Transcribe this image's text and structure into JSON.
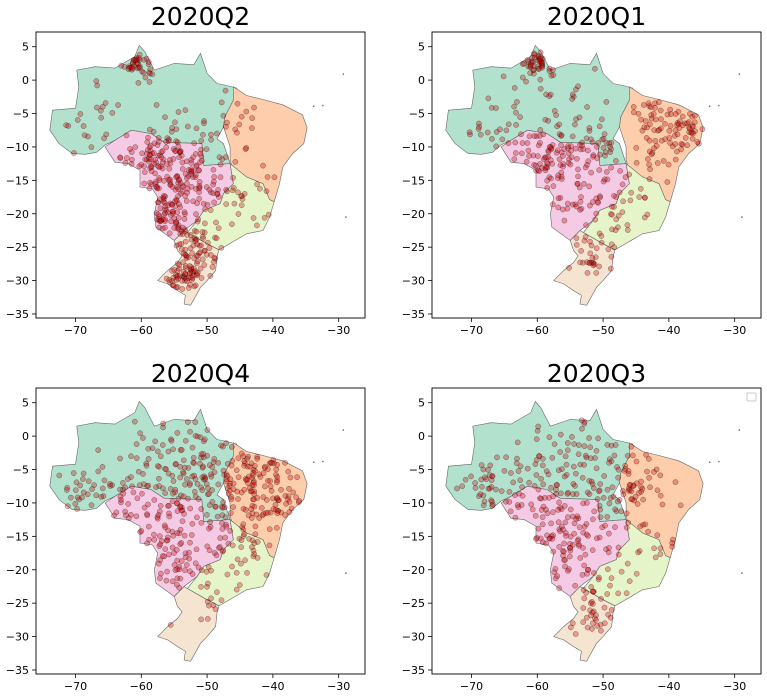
{
  "chart_data": [
    {
      "type": "scatter",
      "title": "2020Q2",
      "xlim": [
        -76,
        -26
      ],
      "ylim": [
        -35.6,
        7.2
      ],
      "xticks": [
        -70,
        -60,
        -50,
        -40,
        -30
      ],
      "yticks": [
        5,
        0,
        -5,
        -10,
        -15,
        -20,
        -25,
        -30,
        -35
      ],
      "xtick_labels": [
        "−70",
        "−60",
        "−50",
        "−40",
        "−30"
      ],
      "ytick_labels": [
        "5",
        "0",
        "−5",
        "−10",
        "−15",
        "−20",
        "−25",
        "−30",
        "−35"
      ],
      "legend": "none",
      "clusters": [
        {
          "lon": -60.5,
          "lat": 2.5,
          "spread": 1.2,
          "n": 40
        },
        {
          "lon": -58.0,
          "lat": -12.0,
          "spread": 3.5,
          "n": 90
        },
        {
          "lon": -54.5,
          "lat": -16.5,
          "spread": 3.0,
          "n": 70
        },
        {
          "lon": -56.5,
          "lat": -20.0,
          "spread": 1.5,
          "n": 35
        },
        {
          "lon": -50.0,
          "lat": -13.0,
          "spread": 4.0,
          "n": 60
        },
        {
          "lon": -52.5,
          "lat": -25.5,
          "spread": 2.5,
          "n": 70
        },
        {
          "lon": -53.5,
          "lat": -29.5,
          "spread": 1.6,
          "n": 55
        },
        {
          "lon": -47.0,
          "lat": -6.0,
          "spread": 3.5,
          "n": 25
        },
        {
          "lon": -45.0,
          "lat": -18.0,
          "spread": 3.0,
          "n": 20
        },
        {
          "lon": -68.0,
          "lat": -6.0,
          "spread": 4.0,
          "n": 20
        }
      ]
    },
    {
      "type": "scatter",
      "title": "2020Q1",
      "xlim": [
        -76,
        -26
      ],
      "ylim": [
        -35.6,
        7.2
      ],
      "xticks": [
        -70,
        -60,
        -50,
        -40,
        -30
      ],
      "yticks": [
        5,
        0,
        -5,
        -10,
        -15,
        -20,
        -25,
        -30,
        -35
      ],
      "xtick_labels": [
        "−70",
        "−60",
        "−50",
        "−40",
        "−30"
      ],
      "ytick_labels": [
        "5",
        "0",
        "−5",
        "−10",
        "−15",
        "−20",
        "−25",
        "−30",
        "−35"
      ],
      "legend": "none",
      "clusters": [
        {
          "lon": -60.0,
          "lat": 3.0,
          "spread": 1.3,
          "n": 45
        },
        {
          "lon": -58.0,
          "lat": -12.5,
          "spread": 3.5,
          "n": 80
        },
        {
          "lon": -53.0,
          "lat": -10.0,
          "spread": 4.0,
          "n": 50
        },
        {
          "lon": -37.5,
          "lat": -8.0,
          "spread": 2.5,
          "n": 55
        },
        {
          "lon": -42.0,
          "lat": -5.0,
          "spread": 2.5,
          "n": 30
        },
        {
          "lon": -50.0,
          "lat": -20.0,
          "spread": 3.5,
          "n": 45
        },
        {
          "lon": -51.0,
          "lat": -27.0,
          "spread": 2.8,
          "n": 25
        },
        {
          "lon": -60.0,
          "lat": -5.0,
          "spread": 5.0,
          "n": 35
        },
        {
          "lon": -68.0,
          "lat": -6.0,
          "spread": 3.5,
          "n": 15
        },
        {
          "lon": -46.0,
          "lat": -14.0,
          "spread": 3.5,
          "n": 25
        }
      ]
    },
    {
      "type": "scatter",
      "title": "2020Q4",
      "xlim": [
        -76,
        -26
      ],
      "ylim": [
        -35.6,
        7.2
      ],
      "xticks": [
        -70,
        -60,
        -50,
        -40,
        -30
      ],
      "yticks": [
        5,
        0,
        -5,
        -10,
        -15,
        -20,
        -25,
        -30,
        -35
      ],
      "xtick_labels": [
        "−70",
        "−60",
        "−50",
        "−40",
        "−30"
      ],
      "ytick_labels": [
        "5",
        "0",
        "−5",
        "−10",
        "−15",
        "−20",
        "−25",
        "−30",
        "−35"
      ],
      "legend": "none",
      "clusters": [
        {
          "lon": -50.0,
          "lat": -6.0,
          "spread": 5.5,
          "n": 160
        },
        {
          "lon": -42.0,
          "lat": -7.0,
          "spread": 3.5,
          "n": 70
        },
        {
          "lon": -57.0,
          "lat": -13.0,
          "spread": 4.0,
          "n": 70
        },
        {
          "lon": -67.5,
          "lat": -9.5,
          "spread": 3.0,
          "n": 40
        },
        {
          "lon": -45.0,
          "lat": -16.0,
          "spread": 3.5,
          "n": 45
        },
        {
          "lon": -55.0,
          "lat": -19.0,
          "spread": 2.5,
          "n": 30
        },
        {
          "lon": -49.0,
          "lat": -24.0,
          "spread": 3.0,
          "n": 20
        },
        {
          "lon": -37.5,
          "lat": -11.0,
          "spread": 2.0,
          "n": 20
        },
        {
          "lon": -60.0,
          "lat": -3.0,
          "spread": 3.0,
          "n": 25
        }
      ]
    },
    {
      "type": "scatter",
      "title": "2020Q3",
      "xlim": [
        -76,
        -26
      ],
      "ylim": [
        -35.6,
        7.2
      ],
      "xticks": [
        -70,
        -60,
        -50,
        -40,
        -30
      ],
      "yticks": [
        5,
        0,
        -5,
        -10,
        -15,
        -20,
        -25,
        -30,
        -35
      ],
      "xtick_labels": [
        "−70",
        "−60",
        "−50",
        "−40",
        "−30"
      ],
      "ytick_labels": [
        "5",
        "0",
        "−5",
        "−10",
        "−15",
        "−20",
        "−25",
        "−30",
        "−35"
      ],
      "legend": "upper right (empty)",
      "clusters": [
        {
          "lon": -55.0,
          "lat": -6.0,
          "spread": 5.0,
          "n": 120
        },
        {
          "lon": -67.0,
          "lat": -8.5,
          "spread": 3.5,
          "n": 50
        },
        {
          "lon": -57.0,
          "lat": -15.0,
          "spread": 3.0,
          "n": 60
        },
        {
          "lon": -47.0,
          "lat": -11.0,
          "spread": 3.0,
          "n": 40
        },
        {
          "lon": -51.0,
          "lat": -20.0,
          "spread": 3.5,
          "n": 40
        },
        {
          "lon": -51.5,
          "lat": -27.5,
          "spread": 2.2,
          "n": 30
        },
        {
          "lon": -44.0,
          "lat": -6.5,
          "spread": 2.5,
          "n": 25
        },
        {
          "lon": -40.0,
          "lat": -17.0,
          "spread": 2.0,
          "n": 8
        }
      ]
    }
  ],
  "colors": {
    "north": "#b2e2cd",
    "northeast": "#fdcdac",
    "center_west": "#f4cae4",
    "southeast": "#e6f5c9",
    "south": "#f5e4cf",
    "point_fill": "#cc0000",
    "point_edge": "#000000"
  }
}
